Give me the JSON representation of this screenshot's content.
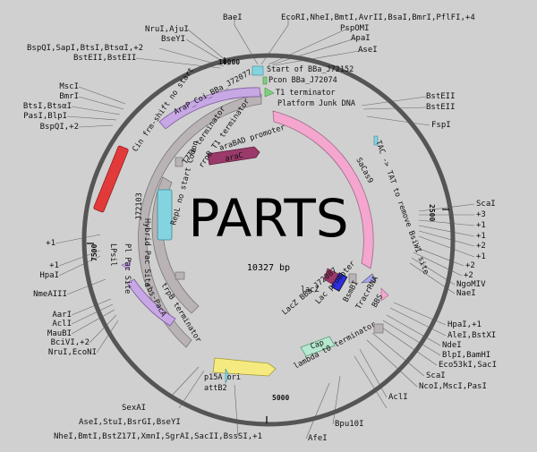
{
  "center_title": "PARTS",
  "plasmid_size": "10327 bp",
  "ticks": [
    "10000",
    "2500",
    "5000",
    "7500"
  ],
  "sites": {
    "top": [
      "BaeI",
      "EcoRI,NheI,BmtI,AvrII,BsaI,BmrI,PflFI,+4",
      "PspOMI",
      "ApaI",
      "AseI",
      "NruI,AjuI",
      "BseYI",
      "BspQI,SapI,BtsI,BtsαI,+2",
      "BstEII,BstEII"
    ],
    "right": [
      "BstEII",
      "BstEII",
      "FspI",
      "ScaI",
      "+3",
      "+1",
      "+1",
      "+2",
      "+1",
      "+2",
      "+2",
      "NgoMIV",
      "NaeI",
      "HpaI,+1",
      "AleI,BstXI",
      "NdeI",
      "BlpI,BamHI",
      "Eco53kI,SacI",
      "ScaI",
      "NcoI,MscI,PasI",
      "AclI",
      "Bpu10I",
      "AfeI"
    ],
    "left": [
      "MscI",
      "BmrI",
      "BtsI,BtsαI",
      "PasI,BlpI",
      "BspQI,+2",
      "+1",
      "+1",
      "HpaI",
      "NmeAIII",
      "AarI",
      "AclI",
      "MauBI",
      "BciVI,+2",
      "NruI,EcoNI"
    ],
    "bottom": [
      "SexAI",
      "AseI,StuI,BsrGI,BseYI",
      "NheI,BmtI,BstZ17I,XmnI,SgrAI,SacII,BssSI,+1"
    ]
  },
  "features": [
    "Start of BBa_J72152",
    "Pcon BBa_J72074",
    "T1 terminator",
    "Platform Junk DNA",
    "TAC -> TAT to remove BsiWI site",
    "SaCas9",
    "BBS",
    "TracrRNA",
    "BsmBI",
    "Lac promoter",
    "LacZ BBa_J72087",
    "lacZ",
    "Cap",
    "lambda t0 terminator",
    "p15A ori",
    "attB2",
    "rbs-PacA",
    "trpB terminator",
    "Pl Pac Site",
    "LPsil",
    "Hybrid Pac Site",
    "J72103",
    "RepL no start Codon",
    "rrnB T1 terminator",
    "T7Te terminator",
    "araBAD promoter",
    "araC",
    "AraP_Coi_BBa_J72077",
    "Cin frm-shift no start"
  ],
  "colors": {
    "background": "#d0d0d0",
    "backbone": "#555555",
    "sacas9": "#f4a6cf",
    "arac": "#9b3a6a",
    "j72103": "#b9b3b6",
    "cin": "#e23a3a",
    "repl": "#84d3e0",
    "rbs_paca": "#c7a7e4",
    "p15a_ori": "#f4ea7f",
    "cap": "#b6e8cf",
    "lacz": "#2e2ede",
    "lac_promoter": "#a4a4f0"
  }
}
